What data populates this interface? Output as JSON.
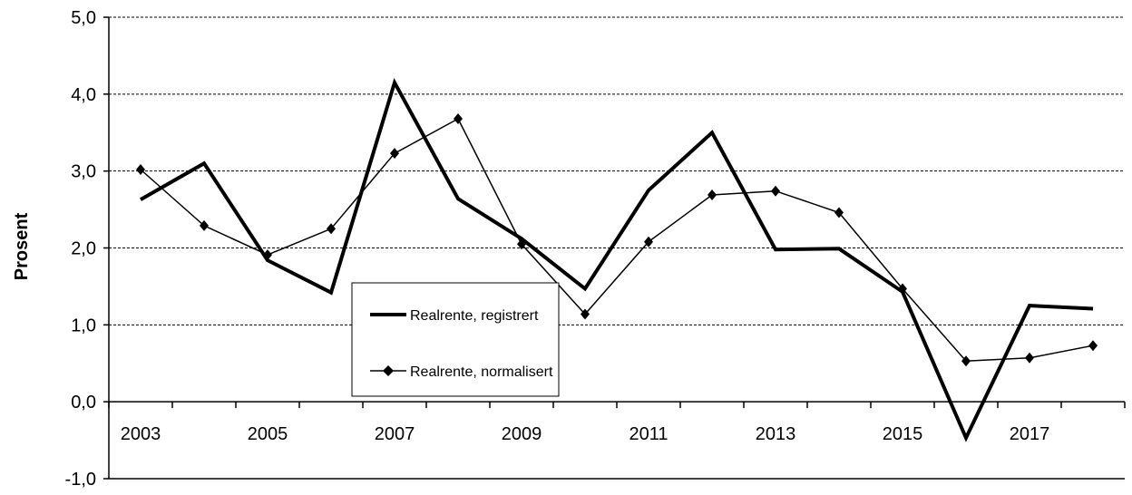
{
  "chart_data": {
    "type": "line",
    "title": "",
    "xlabel": "",
    "ylabel": "Prosent",
    "ylim": [
      -1,
      5
    ],
    "yticks": [
      -1,
      0,
      1,
      2,
      3,
      4,
      5
    ],
    "ytick_labels": [
      "-1,0",
      "0,0",
      "1,0",
      "2,0",
      "3,0",
      "4,0",
      "5,0"
    ],
    "x": [
      2003,
      2004,
      2005,
      2006,
      2007,
      2008,
      2009,
      2010,
      2011,
      2012,
      2013,
      2014,
      2015,
      2016,
      2017,
      2018
    ],
    "xtick_labels": [
      "2003",
      "2005",
      "2007",
      "2009",
      "2011",
      "2013",
      "2015",
      "2017"
    ],
    "grid": "horizontal dashed",
    "legend_placement": "center",
    "series": [
      {
        "name": "Realrente, registrert",
        "style": "thick-line",
        "color": "#000000",
        "values": [
          2.63,
          3.1,
          1.84,
          1.42,
          4.15,
          2.64,
          2.12,
          1.47,
          2.75,
          3.5,
          1.98,
          1.99,
          1.43,
          -0.47,
          1.25,
          1.21
        ]
      },
      {
        "name": "Realrente, normalisert",
        "style": "thin-line-diamond",
        "color": "#000000",
        "values": [
          3.02,
          2.29,
          1.91,
          2.25,
          3.23,
          3.68,
          2.05,
          1.14,
          2.08,
          2.69,
          2.74,
          2.46,
          1.47,
          0.53,
          0.57,
          0.73
        ]
      }
    ]
  }
}
